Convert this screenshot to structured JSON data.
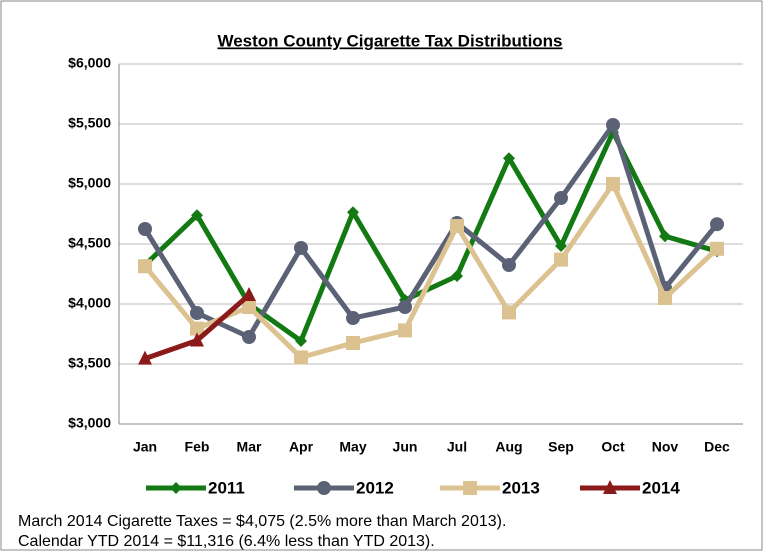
{
  "chart_data": {
    "type": "line",
    "title": "Weston County Cigarette Tax Distributions",
    "categories": [
      "Jan",
      "Feb",
      "Mar",
      "Apr",
      "May",
      "Jun",
      "Jul",
      "Aug",
      "Sep",
      "Oct",
      "Nov",
      "Dec"
    ],
    "series": [
      {
        "name": "2011",
        "color": "#137a13",
        "marker": "diamond",
        "values": [
          4325,
          4740,
          4000,
          3692,
          4765,
          4033,
          4233,
          5215,
          4483,
          5433,
          4565,
          4440
        ]
      },
      {
        "name": "2012",
        "color": "#5b6275",
        "marker": "circle",
        "values": [
          4625,
          3925,
          3725,
          4467,
          3883,
          3975,
          4675,
          4325,
          4883,
          5492,
          4133,
          4665
        ]
      },
      {
        "name": "2013",
        "color": "#dbc290",
        "marker": "square",
        "values": [
          4315,
          3795,
          3975,
          3555,
          3675,
          3780,
          4650,
          3930,
          4370,
          5000,
          4050,
          4460
        ]
      },
      {
        "name": "2014",
        "color": "#8b1a1a",
        "marker": "triangle",
        "values": [
          3545,
          3696,
          4075,
          null,
          null,
          null,
          null,
          null,
          null,
          null,
          null,
          null
        ]
      }
    ],
    "ylim": [
      3000,
      6000
    ],
    "yticks": [
      {
        "value": 3000,
        "label": "$3,000"
      },
      {
        "value": 3500,
        "label": "$3,500"
      },
      {
        "value": 4000,
        "label": "$4,000"
      },
      {
        "value": 4500,
        "label": "$4,500"
      },
      {
        "value": 5000,
        "label": "$5,000"
      },
      {
        "value": 5500,
        "label": "$5,500"
      },
      {
        "value": 6000,
        "label": "$6,000"
      }
    ],
    "grid": true,
    "legend": "bottom",
    "notes": [
      "March 2014 Cigarette Taxes = $4,075 (2.5% more than March 2013).",
      "Calendar YTD 2014 = $11,316 (6.4% less than YTD 2013)."
    ]
  }
}
